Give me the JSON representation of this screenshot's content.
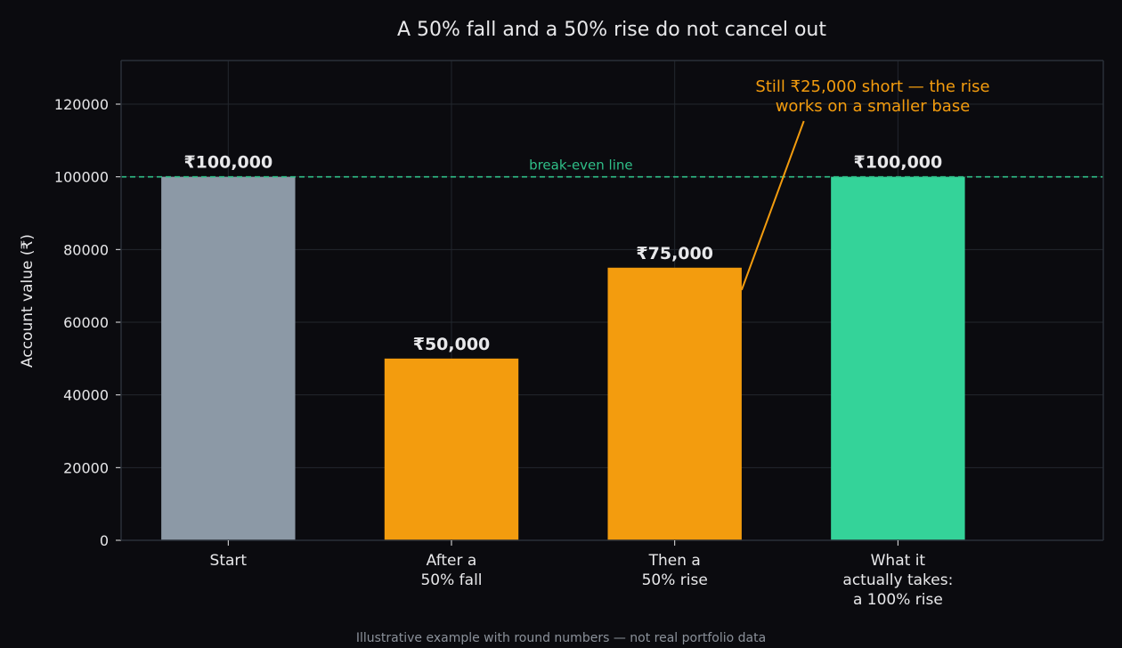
{
  "chart_data": {
    "type": "bar",
    "title": "A 50% fall and a 50% rise do not cancel out",
    "ylabel": "Account value (₹)",
    "xlabel": "",
    "ylim": [
      0,
      132000
    ],
    "yticks": [
      0,
      20000,
      40000,
      60000,
      80000,
      100000,
      120000
    ],
    "grid": true,
    "categories": [
      [
        "Start"
      ],
      [
        "After a",
        "50% fall"
      ],
      [
        "Then a",
        "50% rise"
      ],
      [
        "What it",
        "actually takes:",
        "a 100% rise"
      ]
    ],
    "values": [
      100000,
      50000,
      75000,
      100000
    ],
    "data_labels": [
      "₹100,000",
      "₹50,000",
      "₹75,000",
      "₹100,000"
    ],
    "bar_colors": [
      "#8c99a6",
      "#f39c0e",
      "#f39c0e",
      "#34d399"
    ],
    "reference_line": {
      "value": 100000,
      "label": "break-even line",
      "color": "#2fbf88"
    },
    "annotation": {
      "lines": [
        "Still ₹25,000 short — the rise",
        "works on a smaller base"
      ],
      "color": "#f39c0e",
      "target_bar": 2
    },
    "footnote": "Illustrative example with round numbers — not real portfolio data",
    "colors": {
      "background": "#0b0b0f",
      "text": "#e8e8ea",
      "grid": "#23272e",
      "axis": "#2a3038",
      "footnote": "#8b919a"
    }
  }
}
